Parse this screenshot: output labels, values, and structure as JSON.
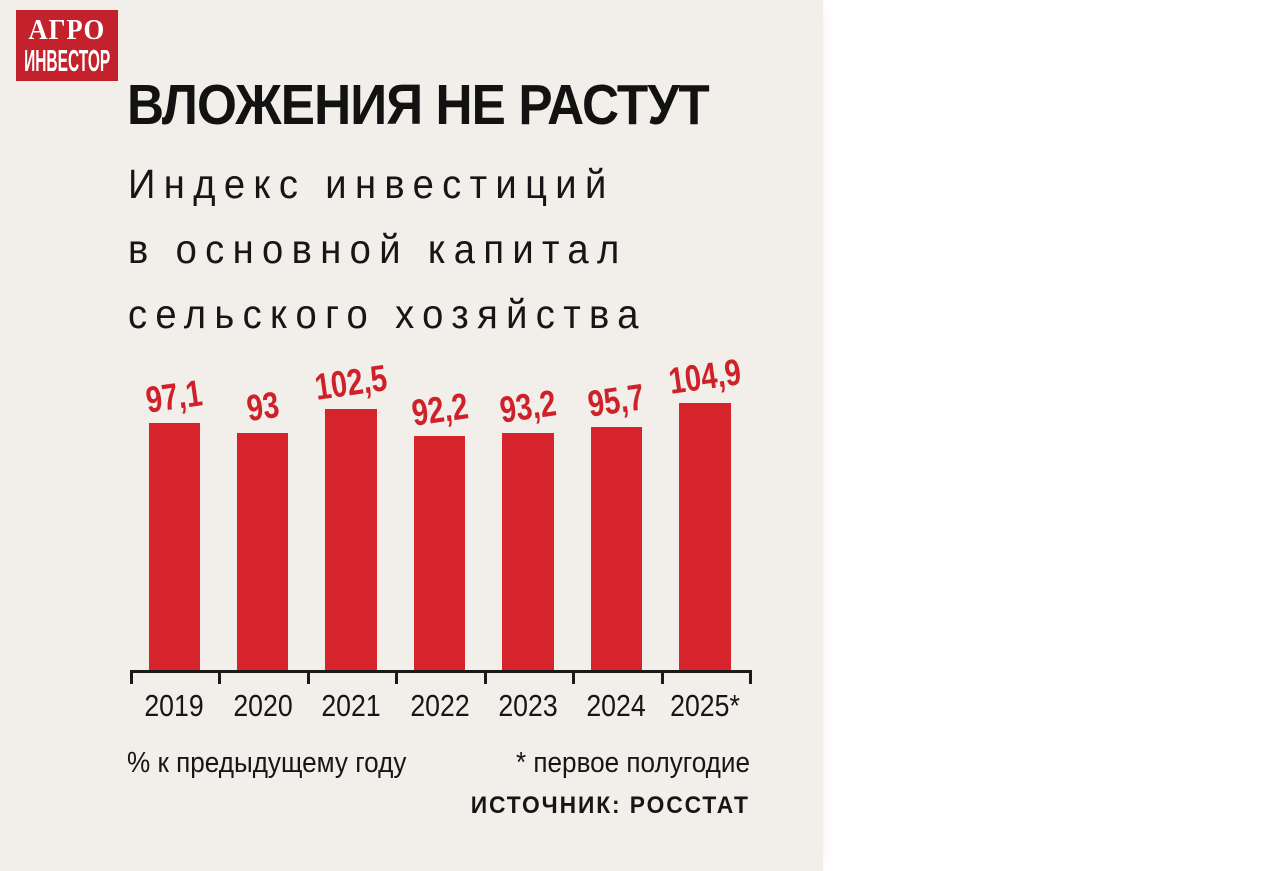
{
  "logo": {
    "line1": "АГРО",
    "line2": "ИНВЕСТОР",
    "bg_color": "#C3212B",
    "text_color": "#FFFFFF"
  },
  "header": {
    "title": "ВЛОЖЕНИЯ НЕ РАСТУТ",
    "subtitle_lines": [
      "Индекс инвестиций",
      "в основной капитал",
      "сельского хозяйства"
    ]
  },
  "footnotes": {
    "units": "% к предыдущему году",
    "half_year": "* первое полугодие",
    "source": "ИСТОЧНИК: РОССТАТ"
  },
  "colors": {
    "card_background": "#F2EEE9",
    "page_background": "#FFFFFF",
    "bar": "#D7242C",
    "value_label": "#CE2129",
    "axis": "#1A1A1A",
    "text": "#161616"
  },
  "chart_data": {
    "type": "bar",
    "title": "ВЛОЖЕНИЯ НЕ РАСТУТ",
    "subtitle": "Индекс инвестиций в основной капитал сельского хозяйства",
    "categories": [
      "2019",
      "2020",
      "2021",
      "2022",
      "2023",
      "2024",
      "2025*"
    ],
    "values": [
      97.1,
      93,
      102.5,
      92.2,
      93.2,
      95.7,
      104.9
    ],
    "value_labels": [
      "97,1",
      "93",
      "102,5",
      "92,2",
      "93,2",
      "95,7",
      "104,9"
    ],
    "ylabel": "% к предыдущему году",
    "xlabel": "",
    "ylim": [
      0,
      110
    ],
    "grid": false,
    "legend": "none",
    "baseline": 0,
    "footnote": "* первое полугодие",
    "source": "ИСТОЧНИК: РОССТАТ",
    "bar_color": "#D7242C"
  }
}
